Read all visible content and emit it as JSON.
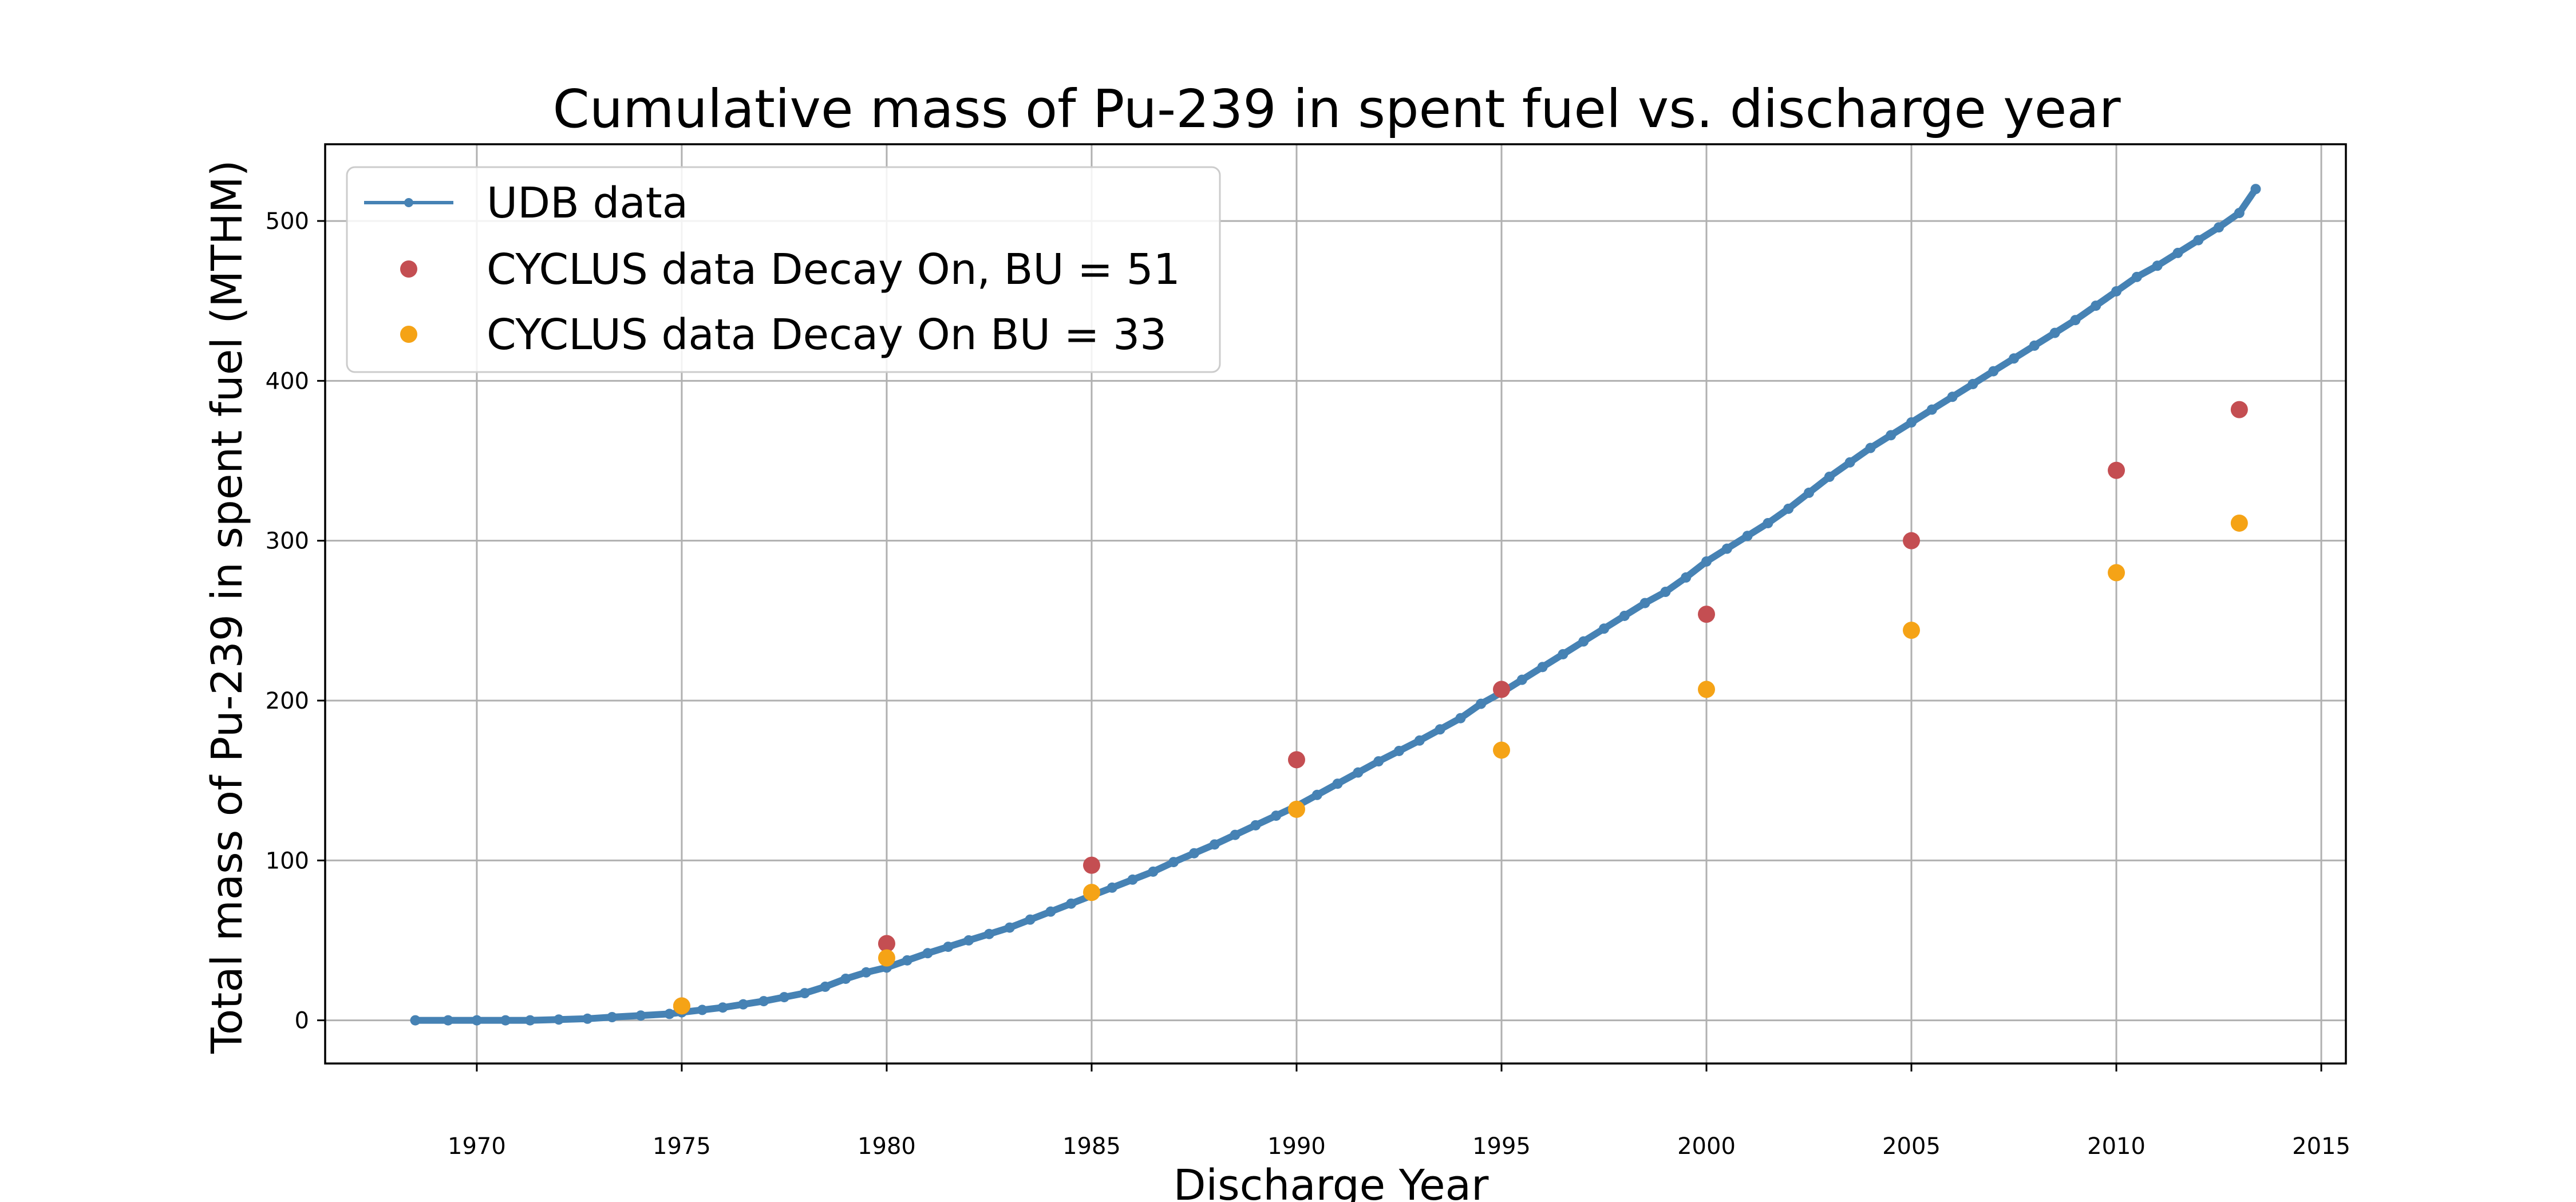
{
  "chart_data": {
    "type": "scatter",
    "title": "Cumulative mass of Pu-239 in spent fuel vs. discharge year",
    "xlabel": "Discharge Year",
    "ylabel": "Total mass of Pu-239 in spent fuel (MTHM)",
    "xlim": [
      1966.3,
      2015.6
    ],
    "ylim": [
      -27,
      548
    ],
    "xticks": [
      1970,
      1975,
      1980,
      1985,
      1990,
      1995,
      2000,
      2005,
      2010,
      2015
    ],
    "yticks": [
      0,
      100,
      200,
      300,
      400,
      500
    ],
    "grid": true,
    "legend_position": "upper-left",
    "series": [
      {
        "name": "UDB data",
        "style": "line-with-markers",
        "color": "#4682b4",
        "x": [
          1968.5,
          1969.3,
          1970.0,
          1970.7,
          1971.3,
          1972.0,
          1972.7,
          1973.3,
          1974.0,
          1974.7,
          1975.0,
          1975.5,
          1976.0,
          1976.5,
          1977.0,
          1977.5,
          1978.0,
          1978.5,
          1979.0,
          1979.5,
          1980.0,
          1980.5,
          1981.0,
          1981.5,
          1982.0,
          1982.5,
          1983.0,
          1983.5,
          1984.0,
          1984.5,
          1985.0,
          1985.5,
          1986.0,
          1986.5,
          1987.0,
          1987.5,
          1988.0,
          1988.5,
          1989.0,
          1989.5,
          1990.0,
          1990.5,
          1991.0,
          1991.5,
          1992.0,
          1992.5,
          1993.0,
          1993.5,
          1994.0,
          1994.5,
          1995.0,
          1995.5,
          1996.0,
          1996.5,
          1997.0,
          1997.5,
          1998.0,
          1998.5,
          1999.0,
          1999.5,
          2000.0,
          2000.5,
          2001.0,
          2001.5,
          2002.0,
          2002.5,
          2003.0,
          2003.5,
          2004.0,
          2004.5,
          2005.0,
          2005.5,
          2006.0,
          2006.5,
          2007.0,
          2007.5,
          2008.0,
          2008.5,
          2009.0,
          2009.5,
          2010.0,
          2010.5,
          2011.0,
          2011.5,
          2012.0,
          2012.5,
          2013.0,
          2013.4
        ],
        "y": [
          0,
          0,
          0,
          0,
          0,
          0.5,
          1,
          2,
          3,
          4,
          5,
          6.5,
          8,
          10,
          12,
          14.5,
          17,
          21,
          26,
          30,
          33,
          37.5,
          42,
          46,
          50,
          54,
          58,
          63,
          68,
          73,
          78,
          83,
          88,
          93,
          99,
          104.5,
          110,
          116,
          122,
          128,
          134,
          141,
          148,
          155,
          162,
          168.5,
          175,
          182,
          189,
          198,
          205,
          213,
          221,
          229,
          237,
          245,
          253,
          261,
          268,
          277,
          287,
          295,
          303,
          311,
          320,
          330,
          340,
          349,
          358,
          366,
          374,
          382,
          390,
          398,
          406,
          414,
          422,
          430,
          438,
          447,
          456,
          465,
          472,
          480,
          488,
          496,
          505,
          520
        ]
      },
      {
        "name": "CYCLUS data Decay On, BU = 51",
        "style": "markers",
        "color": "#c44e52",
        "x": [
          1975,
          1980,
          1985,
          1990,
          1995,
          2000,
          2005,
          2010,
          2013
        ],
        "y": [
          9,
          48,
          97,
          163,
          207,
          254,
          300,
          344,
          382
        ]
      },
      {
        "name": "CYCLUS data Decay On BU = 33",
        "style": "markers",
        "color": "#f5a316",
        "x": [
          1975,
          1980,
          1985,
          1990,
          1995,
          2000,
          2005,
          2010,
          2013
        ],
        "y": [
          9,
          39,
          80,
          132,
          169,
          207,
          244,
          280,
          311
        ]
      }
    ]
  }
}
